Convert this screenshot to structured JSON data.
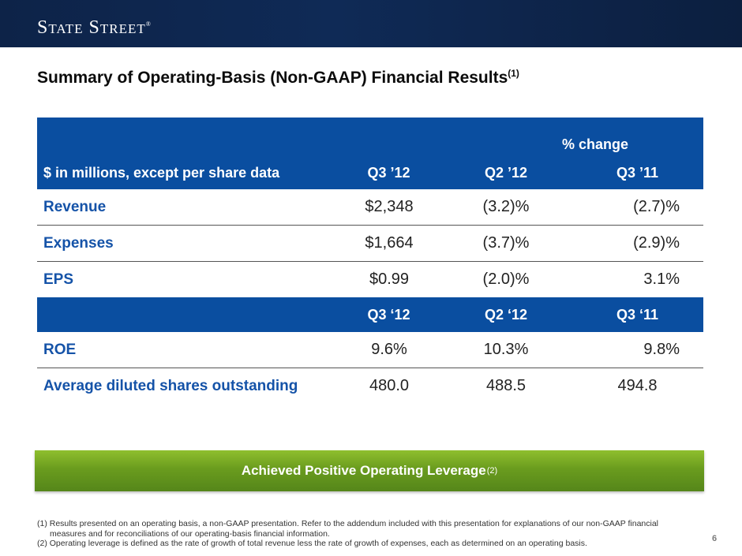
{
  "header": {
    "logo_text": "State Street",
    "logo_mark": "®"
  },
  "title": {
    "text": "Summary of Operating-Basis (Non-GAAP) Financial Results",
    "superscript": "(1)"
  },
  "table": {
    "pct_change_label": "% change",
    "units_label": "$ in millions, except per share data",
    "columns_top": [
      "Q3 ’12",
      "Q2 ’12",
      "Q3 ’11"
    ],
    "rows_top": [
      {
        "label": "Revenue",
        "values": [
          "$2,348",
          "(3.2)%",
          "(2.7)%"
        ]
      },
      {
        "label": "Expenses",
        "values": [
          "$1,664",
          "(3.7)%",
          "(2.9)%"
        ]
      },
      {
        "label": "EPS",
        "values": [
          "$0.99",
          "(2.0)%",
          "3.1%"
        ]
      }
    ],
    "columns_bottom": [
      "Q3 ‘12",
      "Q2 ‘12",
      "Q3 ‘11"
    ],
    "rows_bottom": [
      {
        "label": "ROE",
        "values": [
          "9.6%",
          "10.3%",
          "9.8%"
        ]
      },
      {
        "label": "Average diluted shares outstanding",
        "values": [
          "480.0",
          "488.5",
          "494.8"
        ]
      }
    ]
  },
  "callout": {
    "text": "Achieved Positive Operating Leverage",
    "superscript": "(2)"
  },
  "footnotes": {
    "note1_line1": "(1) Results presented on an operating basis, a non-GAAP presentation. Refer to the addendum included with this presentation for explanations of our non-GAAP financial",
    "note1_line2": "measures and for reconciliations of our operating-basis financial information.",
    "note2": "(2) Operating leverage is defined as the rate of growth of total revenue less the rate of growth of expenses, each as determined on an operating basis."
  },
  "page_number": "6",
  "colors": {
    "header_navy": "#0f2a56",
    "table_blue": "#0a4ea0",
    "label_blue": "#1553a8",
    "callout_green": "#6a9c1e"
  }
}
